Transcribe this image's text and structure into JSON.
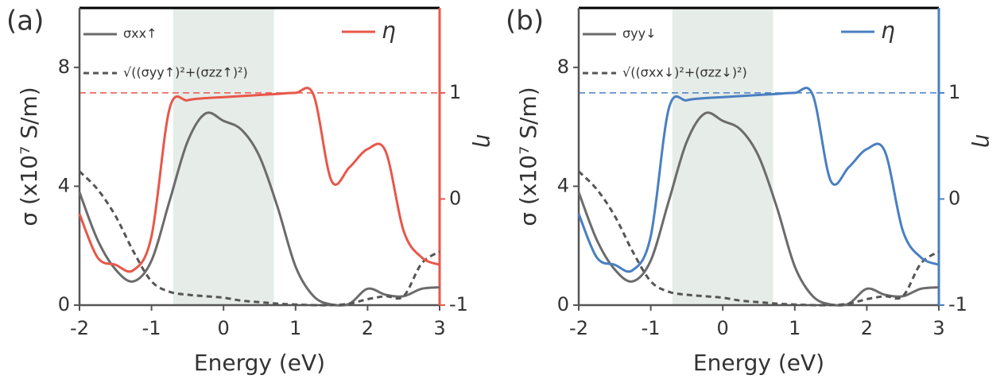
{
  "chart_data": [
    {
      "type": "line",
      "panel_label": "(a)",
      "xlabel": "Energy (eV)",
      "ylabel": "σ (x10⁷ S/m)",
      "y2label": "η",
      "x": [
        -2,
        -1.75,
        -1.5,
        -1.25,
        -1,
        -0.75,
        -0.5,
        -0.25,
        0,
        0.25,
        0.5,
        0.75,
        1,
        1.25,
        1.5,
        1.75,
        2,
        2.25,
        2.5,
        2.75,
        3
      ],
      "xlim": [
        -2,
        3
      ],
      "xticks": [
        -2,
        -1,
        0,
        1,
        2,
        3
      ],
      "ylim": [
        0,
        10
      ],
      "yticks": [
        0,
        4,
        8
      ],
      "y2lim": [
        -1,
        1.8
      ],
      "y2ticks": [
        -1,
        0,
        1
      ],
      "shaded_range": [
        -0.7,
        0.7
      ],
      "shade_color": "#e6ece8",
      "reference_line": 1,
      "y2_color": "#e8574a",
      "series": [
        {
          "name": "σxx↑",
          "color": "#6b6b6b",
          "dash": false,
          "values": [
            3.8,
            2.2,
            1.2,
            0.8,
            1.5,
            3.5,
            5.5,
            6.45,
            6.2,
            5.9,
            5.0,
            3.3,
            1.3,
            0.3,
            0.02,
            0.05,
            0.55,
            0.35,
            0.3,
            0.55,
            0.6
          ]
        },
        {
          "name": "√((σyy↑)²+(σzz↑)²)",
          "color": "#555555",
          "dash": true,
          "values": [
            4.5,
            3.9,
            3.0,
            1.8,
            0.8,
            0.45,
            0.35,
            0.3,
            0.25,
            0.15,
            0.1,
            0.05,
            0.02,
            0,
            0,
            0.05,
            0.2,
            0.3,
            0.3,
            1.4,
            1.8
          ]
        },
        {
          "name": "η",
          "color": "#e8574a",
          "dash": false,
          "axis": "y2",
          "values": [
            -0.14,
            -0.55,
            -0.62,
            -0.67,
            -0.35,
            0.85,
            0.93,
            0.95,
            0.96,
            0.97,
            0.98,
            0.99,
            1.0,
            0.98,
            0.17,
            0.3,
            0.47,
            0.45,
            -0.3,
            -0.55,
            -0.62
          ]
        }
      ]
    },
    {
      "type": "line",
      "panel_label": "(b)",
      "xlabel": "Energy (eV)",
      "ylabel": "σ (x10⁷ S/m)",
      "y2label": "η",
      "x": [
        -2,
        -1.75,
        -1.5,
        -1.25,
        -1,
        -0.75,
        -0.5,
        -0.25,
        0,
        0.25,
        0.5,
        0.75,
        1,
        1.25,
        1.5,
        1.75,
        2,
        2.25,
        2.5,
        2.75,
        3
      ],
      "xlim": [
        -2,
        3
      ],
      "xticks": [
        -2,
        -1,
        0,
        1,
        2,
        3
      ],
      "ylim": [
        0,
        10
      ],
      "yticks": [
        0,
        4,
        8
      ],
      "y2lim": [
        -1,
        1.8
      ],
      "y2ticks": [
        -1,
        0,
        1
      ],
      "shaded_range": [
        -0.7,
        0.7
      ],
      "shade_color": "#e6ece8",
      "reference_line": 1,
      "y2_color": "#4a7fc1",
      "series": [
        {
          "name": "σyy↓",
          "color": "#6b6b6b",
          "dash": false,
          "values": [
            3.8,
            2.2,
            1.2,
            0.8,
            1.5,
            3.5,
            5.5,
            6.45,
            6.2,
            5.9,
            5.0,
            3.3,
            1.3,
            0.3,
            0.02,
            0.05,
            0.55,
            0.35,
            0.3,
            0.55,
            0.6
          ]
        },
        {
          "name": "√((σxx↓)²+(σzz↓)²)",
          "color": "#555555",
          "dash": true,
          "values": [
            4.5,
            3.9,
            3.0,
            1.8,
            0.8,
            0.45,
            0.35,
            0.3,
            0.25,
            0.15,
            0.1,
            0.05,
            0.02,
            0,
            0,
            0.05,
            0.2,
            0.3,
            0.3,
            1.4,
            1.8
          ]
        },
        {
          "name": "η",
          "color": "#4a7fc1",
          "dash": false,
          "axis": "y2",
          "values": [
            -0.14,
            -0.55,
            -0.62,
            -0.67,
            -0.35,
            0.85,
            0.93,
            0.95,
            0.96,
            0.97,
            0.98,
            0.99,
            1.0,
            0.98,
            0.17,
            0.3,
            0.47,
            0.45,
            -0.3,
            -0.55,
            -0.62
          ]
        }
      ]
    }
  ]
}
